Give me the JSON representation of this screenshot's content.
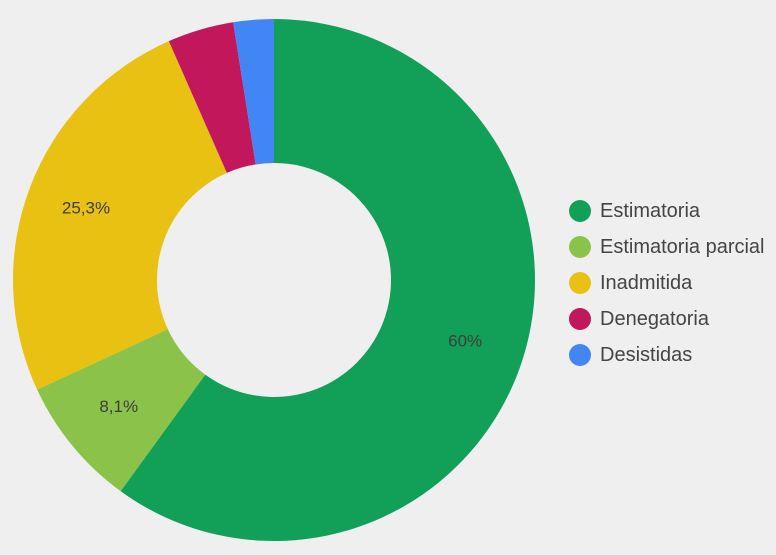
{
  "chart_data": {
    "type": "pie",
    "variant": "donut",
    "categories": [
      "Estimatoria",
      "Estimatoria parcial",
      "Inadmitida",
      "Denegatoria",
      "Desistidas"
    ],
    "values": [
      60,
      8.1,
      25.3,
      4.1,
      2.5
    ],
    "colors": [
      "#12a058",
      "#8bc34a",
      "#e8c112",
      "#c2185b",
      "#4285f4"
    ],
    "data_labels": [
      "60%",
      "8,1%",
      "25,3%",
      "",
      ""
    ],
    "start_angle_deg": 0,
    "direction": "clockwise",
    "legend_position": "right"
  }
}
